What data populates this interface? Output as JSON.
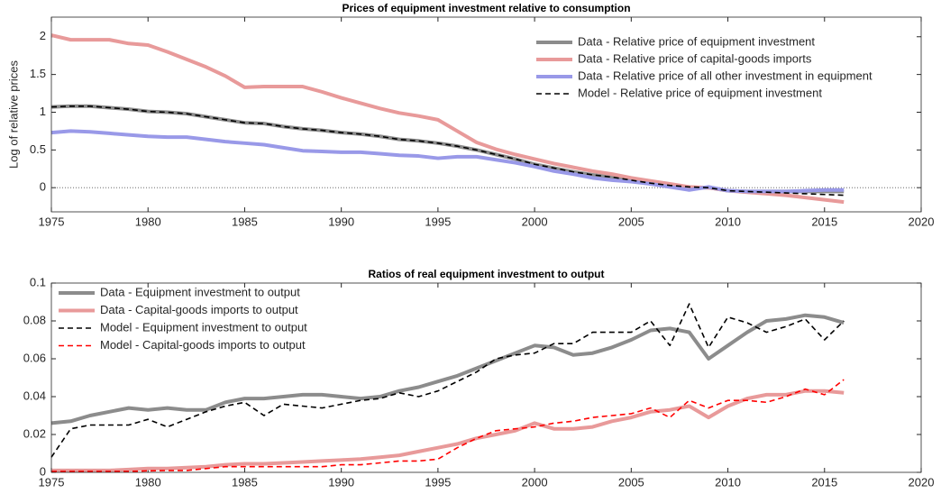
{
  "chart_data": [
    {
      "type": "line",
      "title": "Prices of equipment investment relative to consumption",
      "ylabel": "Log of relative prices",
      "x": [
        1975,
        1976,
        1977,
        1978,
        1979,
        1980,
        1981,
        1982,
        1983,
        1984,
        1985,
        1986,
        1987,
        1988,
        1989,
        1990,
        1991,
        1992,
        1993,
        1994,
        1995,
        1996,
        1997,
        1998,
        1999,
        2000,
        2001,
        2002,
        2003,
        2004,
        2005,
        2006,
        2007,
        2008,
        2009,
        2010,
        2011,
        2012,
        2013,
        2014,
        2015,
        2016
      ],
      "xlim": [
        1975,
        2020
      ],
      "xticks": [
        1975,
        1980,
        1985,
        1990,
        1995,
        2000,
        2005,
        2010,
        2015,
        2020
      ],
      "ylim": [
        -0.32,
        2.26
      ],
      "yticks": [
        0,
        0.5,
        1,
        1.5,
        2
      ],
      "zero_line": true,
      "legend": "upper right",
      "series": [
        {
          "name": "Data - Relative price of equipment investment",
          "color": "#8c8c8c",
          "line_style": "solid",
          "values": [
            1.07,
            1.08,
            1.08,
            1.06,
            1.04,
            1.01,
            1.0,
            0.98,
            0.94,
            0.9,
            0.86,
            0.85,
            0.81,
            0.78,
            0.76,
            0.73,
            0.71,
            0.68,
            0.64,
            0.62,
            0.59,
            0.55,
            0.5,
            0.44,
            0.38,
            0.31,
            0.26,
            0.21,
            0.17,
            0.14,
            0.1,
            0.06,
            0.03,
            0.0,
            0.0,
            -0.04,
            -0.05,
            -0.05,
            -0.05,
            -0.05,
            -0.05,
            -0.05
          ]
        },
        {
          "name": "Data - Relative price of capital-goods imports",
          "color": "#e89a9a",
          "line_style": "solid",
          "values": [
            2.02,
            1.96,
            1.96,
            1.96,
            1.91,
            1.89,
            1.8,
            1.7,
            1.6,
            1.48,
            1.33,
            1.34,
            1.34,
            1.34,
            1.27,
            1.19,
            1.12,
            1.05,
            0.99,
            0.95,
            0.9,
            0.75,
            0.6,
            0.51,
            0.44,
            0.38,
            0.32,
            0.27,
            0.22,
            0.18,
            0.13,
            0.09,
            0.05,
            0.01,
            0.0,
            -0.04,
            -0.06,
            -0.08,
            -0.1,
            -0.13,
            -0.16,
            -0.19
          ]
        },
        {
          "name": "Data - Relative price of all other investment in equipment",
          "color": "#9999e8",
          "line_style": "solid",
          "values": [
            0.73,
            0.75,
            0.74,
            0.72,
            0.7,
            0.68,
            0.67,
            0.67,
            0.64,
            0.61,
            0.59,
            0.57,
            0.53,
            0.49,
            0.48,
            0.47,
            0.47,
            0.45,
            0.43,
            0.42,
            0.39,
            0.41,
            0.41,
            0.37,
            0.33,
            0.28,
            0.22,
            0.18,
            0.13,
            0.1,
            0.08,
            0.05,
            0.01,
            -0.03,
            0.01,
            -0.04,
            -0.05,
            -0.05,
            -0.05,
            -0.04,
            -0.03,
            -0.03
          ]
        },
        {
          "name": "Model - Relative price of equipment investment",
          "color": "#000000",
          "line_style": "dashed",
          "values": [
            1.07,
            1.08,
            1.08,
            1.06,
            1.04,
            1.01,
            1.0,
            0.98,
            0.94,
            0.9,
            0.86,
            0.85,
            0.81,
            0.78,
            0.76,
            0.73,
            0.71,
            0.68,
            0.64,
            0.62,
            0.59,
            0.55,
            0.5,
            0.44,
            0.38,
            0.31,
            0.26,
            0.21,
            0.17,
            0.14,
            0.1,
            0.06,
            0.03,
            0.01,
            0.0,
            -0.04,
            -0.05,
            -0.06,
            -0.07,
            -0.08,
            -0.09,
            -0.1
          ]
        }
      ]
    },
    {
      "type": "line",
      "title": "Ratios of real equipment investment to output",
      "x": [
        1975,
        1976,
        1977,
        1978,
        1979,
        1980,
        1981,
        1982,
        1983,
        1984,
        1985,
        1986,
        1987,
        1988,
        1989,
        1990,
        1991,
        1992,
        1993,
        1994,
        1995,
        1996,
        1997,
        1998,
        1999,
        2000,
        2001,
        2002,
        2003,
        2004,
        2005,
        2006,
        2007,
        2008,
        2009,
        2010,
        2011,
        2012,
        2013,
        2014,
        2015,
        2016
      ],
      "xlim": [
        1975,
        2020
      ],
      "xticks": [
        1975,
        1980,
        1985,
        1990,
        1995,
        2000,
        2005,
        2010,
        2015,
        2020
      ],
      "ylim": [
        0,
        0.1
      ],
      "yticks": [
        0,
        0.02,
        0.04,
        0.06,
        0.08,
        0.1
      ],
      "legend": "upper left",
      "series": [
        {
          "name": "Data - Equipment investment to output",
          "color": "#8c8c8c",
          "line_style": "solid",
          "values": [
            0.026,
            0.027,
            0.03,
            0.032,
            0.034,
            0.033,
            0.034,
            0.033,
            0.033,
            0.037,
            0.039,
            0.039,
            0.04,
            0.041,
            0.041,
            0.04,
            0.039,
            0.04,
            0.043,
            0.045,
            0.048,
            0.051,
            0.055,
            0.059,
            0.063,
            0.067,
            0.066,
            0.062,
            0.063,
            0.066,
            0.07,
            0.075,
            0.076,
            0.074,
            0.06,
            0.067,
            0.074,
            0.08,
            0.081,
            0.083,
            0.082,
            0.079
          ]
        },
        {
          "name": "Data - Capital-goods imports to output",
          "color": "#e89a9a",
          "line_style": "solid",
          "values": [
            0.001,
            0.001,
            0.001,
            0.001,
            0.0015,
            0.002,
            0.002,
            0.0025,
            0.003,
            0.004,
            0.0045,
            0.0045,
            0.005,
            0.0055,
            0.006,
            0.0065,
            0.007,
            0.008,
            0.009,
            0.011,
            0.013,
            0.015,
            0.018,
            0.02,
            0.022,
            0.026,
            0.023,
            0.023,
            0.024,
            0.027,
            0.029,
            0.032,
            0.033,
            0.035,
            0.029,
            0.035,
            0.039,
            0.041,
            0.041,
            0.043,
            0.043,
            0.042
          ]
        },
        {
          "name": "Model - Equipment investment to output",
          "color": "#000000",
          "line_style": "dashed",
          "values": [
            0.008,
            0.023,
            0.025,
            0.025,
            0.025,
            0.028,
            0.024,
            0.028,
            0.032,
            0.035,
            0.037,
            0.03,
            0.036,
            0.035,
            0.034,
            0.036,
            0.038,
            0.039,
            0.042,
            0.04,
            0.043,
            0.048,
            0.053,
            0.06,
            0.062,
            0.063,
            0.068,
            0.068,
            0.074,
            0.074,
            0.074,
            0.08,
            0.067,
            0.089,
            0.066,
            0.082,
            0.079,
            0.074,
            0.077,
            0.081,
            0.07,
            0.08
          ]
        },
        {
          "name": "Model - Capital-goods imports to output",
          "color": "#ff0000",
          "line_style": "dashed",
          "values": [
            0.0005,
            0.0005,
            0.0005,
            0.0005,
            0.0005,
            0.0008,
            0.001,
            0.001,
            0.002,
            0.003,
            0.003,
            0.003,
            0.003,
            0.003,
            0.003,
            0.004,
            0.004,
            0.005,
            0.006,
            0.006,
            0.007,
            0.013,
            0.018,
            0.022,
            0.023,
            0.024,
            0.026,
            0.027,
            0.029,
            0.03,
            0.031,
            0.034,
            0.029,
            0.038,
            0.034,
            0.038,
            0.038,
            0.037,
            0.04,
            0.044,
            0.041,
            0.049
          ]
        }
      ]
    }
  ]
}
